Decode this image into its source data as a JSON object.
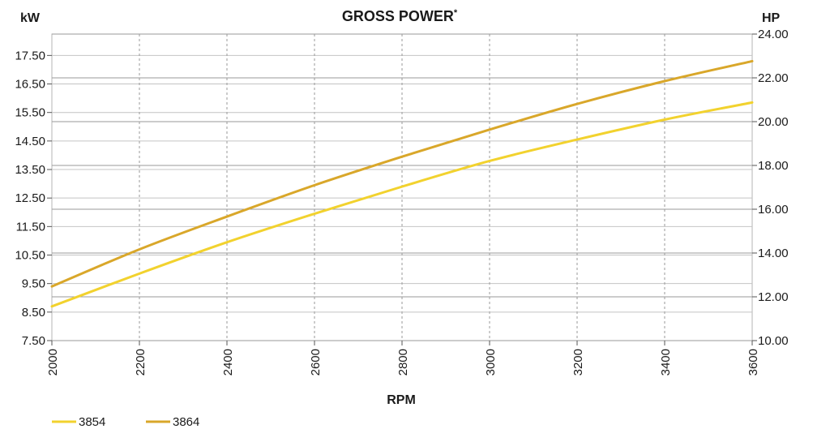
{
  "chart_data": {
    "type": "line",
    "title": "GROSS POWER",
    "title_superscript": "*",
    "xlabel": "RPM",
    "ylabel_left": "kW",
    "ylabel_right": "HP",
    "x_ticks": [
      "2000",
      "2200",
      "2400",
      "2600",
      "2800",
      "3000",
      "3200",
      "3400",
      "3600"
    ],
    "xlim": [
      2000,
      3600
    ],
    "y_left_ticks": [
      "7.50",
      "8.50",
      "9.50",
      "10.50",
      "11.50",
      "12.50",
      "13.50",
      "14.50",
      "15.50",
      "16.50",
      "17.50"
    ],
    "ylim_left": [
      7.5,
      18.25
    ],
    "y_right_ticks": [
      "10.00",
      "12.00",
      "14.00",
      "16.00",
      "18.00",
      "20.00",
      "22.00",
      "24.00"
    ],
    "ylim_right": [
      10.0,
      24.0
    ],
    "grid": true,
    "legend_position": "bottom-left",
    "series": [
      {
        "name": "3854",
        "color": "#f2d22e",
        "x": [
          2000,
          2200,
          2400,
          2600,
          2800,
          3000,
          3200,
          3400,
          3600
        ],
        "y": [
          8.7,
          9.85,
          10.95,
          11.95,
          12.9,
          13.8,
          14.55,
          15.25,
          15.85
        ]
      },
      {
        "name": "3864",
        "color": "#d9a72a",
        "x": [
          2000,
          2200,
          2400,
          2600,
          2800,
          3000,
          3200,
          3400,
          3600
        ],
        "y": [
          9.4,
          10.7,
          11.85,
          12.95,
          13.95,
          14.9,
          15.8,
          16.6,
          17.3
        ]
      }
    ]
  }
}
